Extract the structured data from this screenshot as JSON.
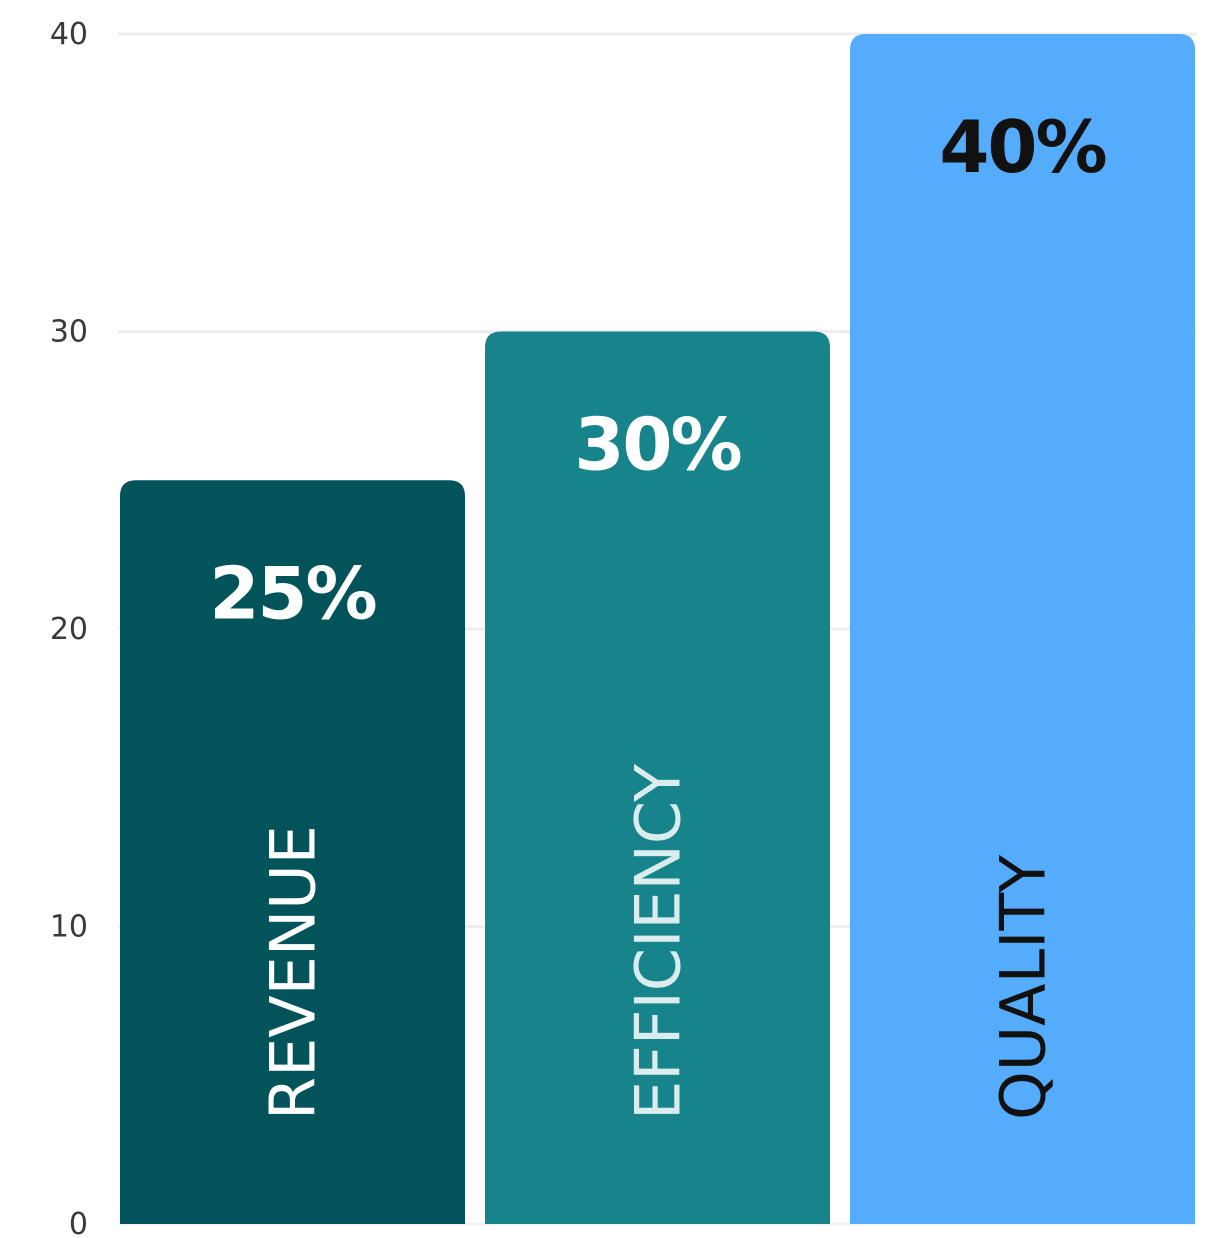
{
  "chart_data": {
    "type": "bar",
    "categories": [
      "REVENUE",
      "EFFICIENCY",
      "QUALITY"
    ],
    "values": [
      25,
      30,
      40
    ],
    "value_labels": [
      "25%",
      "30%",
      "40%"
    ],
    "colors": [
      "#03535a",
      "#17848c",
      "#55acfc"
    ],
    "label_colors": [
      "#ffffff",
      "#ffffff",
      "#111111"
    ],
    "category_label_colors": [
      "#ffffff",
      "#d9ecee",
      "#111111"
    ],
    "yticks": [
      0,
      10,
      20,
      30,
      40
    ],
    "ylim": [
      0,
      40
    ],
    "grid": true,
    "title": "",
    "xlabel": "",
    "ylabel": ""
  }
}
